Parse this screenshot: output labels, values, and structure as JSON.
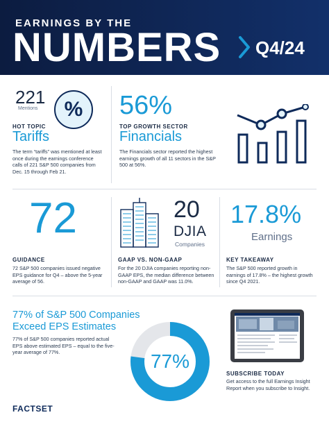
{
  "header": {
    "kicker": "EARNINGS BY THE",
    "title": "NUMBERS",
    "quarter": "Q4/24"
  },
  "tariffs": {
    "count": "221",
    "count_label": "Mentions",
    "icon_symbol": "%",
    "label": "HOT TOPIC",
    "title": "Tariffs",
    "text": "The term “tariffs” was mentioned at least once during the earnings conference calls of 221 S&P 500 companies from Dec. 15 through Feb 21."
  },
  "growth": {
    "value": "56%",
    "label": "TOP GROWTH SECTOR",
    "title": "Financials",
    "text": "The Financials sector reported the highest earnings growth of all 11 sectors in the S&P 500 at 56%.",
    "icon": "bar-line-chart-icon"
  },
  "guidance": {
    "value": "72",
    "label": "GUIDANCE",
    "text": "72 S&P 500 companies issued negative EPS guidance for Q4 – above the 5-year average of 56."
  },
  "djia": {
    "value": "20",
    "name": "DJIA",
    "sub": "Companies",
    "label": "GAAP VS. NON-GAAP",
    "text": "For the 20 DJIA companies reporting non-GAAP EPS, the median difference between non-GAAP and GAAP was 11.0%.",
    "icon": "buildings-icon"
  },
  "takeaway": {
    "value": "17.8%",
    "sub": "Earnings",
    "label": "KEY TAKEAWAY",
    "text": "The S&P 500 reported growth in earnings of 17.8% – the highest growth since Q4 2021."
  },
  "beat": {
    "title": "77% of S&P 500 Companies Exceed EPS Estimates",
    "text": "77% of S&P 500 companies reported actual EPS above estimated EPS – equal to the five-year average of 77%.",
    "donut_label": "77%",
    "donut_fraction": 0.77
  },
  "subscribe": {
    "label": "SUBSCRIBE TODAY",
    "text": "Get access to the full Earnings Insight Report when you subscribe to Insight."
  },
  "footer": {
    "logo": "FACTSET"
  },
  "colors": {
    "navy": "#0e2a5a",
    "accent": "#1a9ad6",
    "light": "#e3f3fb",
    "grey": "#e4e6ea"
  }
}
